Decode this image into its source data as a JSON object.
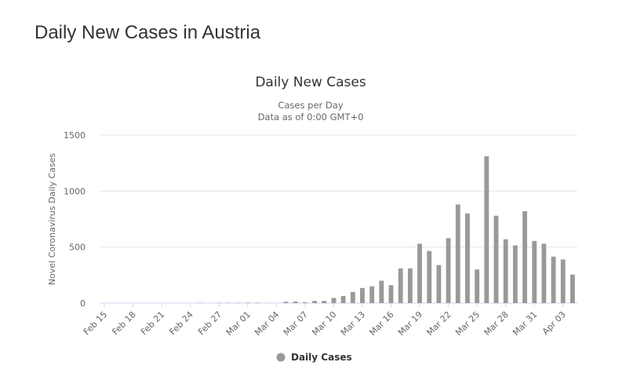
{
  "page": {
    "title": "Daily New Cases in Austria"
  },
  "chart_data": {
    "type": "bar",
    "title": "Daily New Cases",
    "subtitle_lines": [
      "Cases per Day",
      "Data as of 0:00 GMT+0"
    ],
    "ylabel": "Novel Coronavirus Daily Cases",
    "xlabel": "",
    "ylim": [
      0,
      1500
    ],
    "yticks": [
      0,
      500,
      1000,
      1500
    ],
    "grid": true,
    "legend_position": "bottom",
    "categories": [
      "Feb 15",
      "Feb 16",
      "Feb 17",
      "Feb 18",
      "Feb 19",
      "Feb 20",
      "Feb 21",
      "Feb 22",
      "Feb 23",
      "Feb 24",
      "Feb 25",
      "Feb 26",
      "Feb 27",
      "Feb 28",
      "Feb 29",
      "Mar 01",
      "Mar 02",
      "Mar 03",
      "Mar 04",
      "Mar 05",
      "Mar 06",
      "Mar 07",
      "Mar 08",
      "Mar 09",
      "Mar 10",
      "Mar 11",
      "Mar 12",
      "Mar 13",
      "Mar 14",
      "Mar 15",
      "Mar 16",
      "Mar 17",
      "Mar 18",
      "Mar 19",
      "Mar 20",
      "Mar 21",
      "Mar 22",
      "Mar 23",
      "Mar 24",
      "Mar 25",
      "Mar 26",
      "Mar 27",
      "Mar 28",
      "Mar 29",
      "Mar 30",
      "Mar 31",
      "Apr 01",
      "Apr 02",
      "Apr 03",
      "Apr 04"
    ],
    "tick_labels": [
      "Feb 15",
      "Feb 18",
      "Feb 21",
      "Feb 24",
      "Feb 27",
      "Mar 01",
      "Mar 04",
      "Mar 07",
      "Mar 10",
      "Mar 13",
      "Mar 16",
      "Mar 19",
      "Mar 22",
      "Mar 25",
      "Mar 28",
      "Mar 31",
      "Apr 03"
    ],
    "series": [
      {
        "name": "Daily Cases",
        "color": "#999999",
        "values": [
          0,
          0,
          0,
          0,
          0,
          0,
          0,
          0,
          0,
          0,
          2,
          0,
          2,
          3,
          2,
          4,
          4,
          1,
          0,
          12,
          14,
          7,
          20,
          20,
          46,
          64,
          100,
          135,
          150,
          200,
          160,
          310,
          310,
          530,
          465,
          340,
          580,
          880,
          800,
          300,
          1310,
          780,
          570,
          515,
          820,
          555,
          530,
          415,
          390,
          255
        ]
      }
    ]
  }
}
